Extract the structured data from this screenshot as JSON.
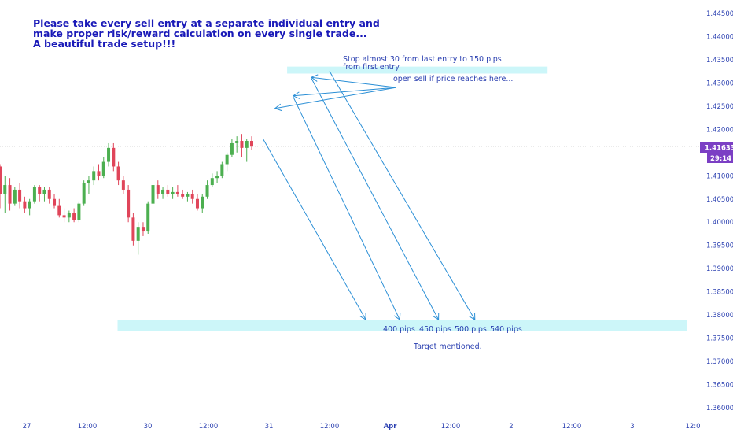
{
  "annotations": {
    "headline": [
      "Please take every sell entry at a separate individual entry and",
      "make proper risk/reward calculation on every single trade...",
      "A beautiful trade setup!!!"
    ],
    "stop_note": [
      "Stop almost 30 from last entry to 150 pips",
      "from first entry"
    ],
    "entry_note": "open sell if price reaches here...",
    "target_note": "Target mentioned.",
    "pip_labels": [
      "400 pips",
      "450 pips",
      "500 pips",
      "540 pips"
    ]
  },
  "price_badge": {
    "value": "1.41633",
    "countdown": "29:14"
  },
  "colors": {
    "up": "#4caf50",
    "down": "#e0455a",
    "zone": "#ccf6f9",
    "arrow": "#2b8fd6",
    "text": "#2a3fb0",
    "badge": "#7b3fc4"
  },
  "chart_data": {
    "type": "candlestick",
    "y_axis": {
      "range": [
        1.358,
        1.447
      ],
      "ticks": [
        "1.44500",
        "1.44000",
        "1.43500",
        "1.43000",
        "1.42500",
        "1.42000",
        "1.41500",
        "1.41000",
        "1.40500",
        "1.40000",
        "1.39500",
        "1.39000",
        "1.38500",
        "1.38000",
        "1.37500",
        "1.37000",
        "1.36500",
        "1.36000"
      ]
    },
    "x_axis": {
      "ticks": [
        {
          "label": "27",
          "t": 0.5
        },
        {
          "label": "12:00",
          "t": 1.0
        },
        {
          "label": "30",
          "t": 1.5
        },
        {
          "label": "12:00",
          "t": 2.0
        },
        {
          "label": "31",
          "t": 2.5
        },
        {
          "label": "12:00",
          "t": 3.0
        },
        {
          "label": "Apr",
          "t": 3.5,
          "bold": true
        },
        {
          "label": "12:00",
          "t": 4.0
        },
        {
          "label": "2",
          "t": 4.5
        },
        {
          "label": "12:00",
          "t": 5.0
        },
        {
          "label": "3",
          "t": 5.5
        },
        {
          "label": "12:0",
          "t": 6.0
        }
      ]
    },
    "current_price": 1.41633,
    "candles": [
      [
        1.412,
        1.4125,
        1.403,
        1.406
      ],
      [
        1.406,
        1.41,
        1.402,
        1.408
      ],
      [
        1.408,
        1.4095,
        1.4025,
        1.404
      ],
      [
        1.404,
        1.4075,
        1.4035,
        1.407
      ],
      [
        1.407,
        1.4085,
        1.403,
        1.4045
      ],
      [
        1.4045,
        1.4055,
        1.402,
        1.403
      ],
      [
        1.403,
        1.405,
        1.4015,
        1.4045
      ],
      [
        1.4045,
        1.408,
        1.404,
        1.4075
      ],
      [
        1.4075,
        1.408,
        1.4045,
        1.406
      ],
      [
        1.406,
        1.4075,
        1.4045,
        1.407
      ],
      [
        1.407,
        1.4075,
        1.404,
        1.405
      ],
      [
        1.405,
        1.406,
        1.403,
        1.4035
      ],
      [
        1.4035,
        1.405,
        1.401,
        1.4015
      ],
      [
        1.4015,
        1.403,
        1.4,
        1.401
      ],
      [
        1.401,
        1.4025,
        1.4,
        1.402
      ],
      [
        1.402,
        1.403,
        1.4,
        1.4005
      ],
      [
        1.4005,
        1.4045,
        1.4,
        1.404
      ],
      [
        1.404,
        1.409,
        1.4035,
        1.4085
      ],
      [
        1.4085,
        1.41,
        1.406,
        1.409
      ],
      [
        1.409,
        1.412,
        1.408,
        1.411
      ],
      [
        1.411,
        1.4125,
        1.409,
        1.41
      ],
      [
        1.41,
        1.414,
        1.4095,
        1.413
      ],
      [
        1.413,
        1.417,
        1.412,
        1.416
      ],
      [
        1.416,
        1.417,
        1.411,
        1.412
      ],
      [
        1.412,
        1.413,
        1.408,
        1.409
      ],
      [
        1.409,
        1.41,
        1.406,
        1.407
      ],
      [
        1.407,
        1.408,
        1.4,
        1.401
      ],
      [
        1.401,
        1.402,
        1.395,
        1.396
      ],
      [
        1.396,
        1.4,
        1.393,
        1.399
      ],
      [
        1.399,
        1.4,
        1.397,
        1.398
      ],
      [
        1.398,
        1.4045,
        1.3975,
        1.404
      ],
      [
        1.404,
        1.409,
        1.4035,
        1.408
      ],
      [
        1.408,
        1.409,
        1.405,
        1.406
      ],
      [
        1.406,
        1.4075,
        1.405,
        1.407
      ],
      [
        1.407,
        1.408,
        1.4055,
        1.406
      ],
      [
        1.406,
        1.4075,
        1.405,
        1.4065
      ],
      [
        1.4065,
        1.408,
        1.4055,
        1.406
      ],
      [
        1.406,
        1.407,
        1.405,
        1.4055
      ],
      [
        1.4055,
        1.4065,
        1.4045,
        1.406
      ],
      [
        1.406,
        1.407,
        1.404,
        1.405
      ],
      [
        1.405,
        1.406,
        1.4025,
        1.403
      ],
      [
        1.403,
        1.406,
        1.402,
        1.4055
      ],
      [
        1.4055,
        1.409,
        1.405,
        1.408
      ],
      [
        1.408,
        1.4105,
        1.4075,
        1.4095
      ],
      [
        1.4095,
        1.411,
        1.4085,
        1.41
      ],
      [
        1.41,
        1.413,
        1.4095,
        1.4125
      ],
      [
        1.4125,
        1.415,
        1.411,
        1.4145
      ],
      [
        1.4145,
        1.418,
        1.414,
        1.417
      ],
      [
        1.417,
        1.4185,
        1.415,
        1.4175
      ],
      [
        1.4175,
        1.419,
        1.414,
        1.416
      ],
      [
        1.416,
        1.418,
        1.413,
        1.4175
      ],
      [
        1.4175,
        1.4185,
        1.4155,
        1.4163
      ]
    ],
    "zones": [
      {
        "name": "stop zone",
        "price_top": 1.4335,
        "price_bottom": 1.432,
        "t_start": 2.65,
        "t_end": 4.8
      },
      {
        "name": "target zone",
        "price_top": 1.379,
        "price_bottom": 1.3765,
        "t_start": 1.25,
        "t_end": 5.95
      }
    ],
    "arrows": [
      {
        "kind": "entry",
        "from": {
          "t": 3.55,
          "price": 1.429
        },
        "to": {
          "t": 2.85,
          "price": 1.4312
        }
      },
      {
        "kind": "entry",
        "from": {
          "t": 3.55,
          "price": 1.429
        },
        "to": {
          "t": 2.7,
          "price": 1.4272
        }
      },
      {
        "kind": "entry",
        "from": {
          "t": 3.55,
          "price": 1.429
        },
        "to": {
          "t": 2.55,
          "price": 1.4245
        }
      },
      {
        "kind": "target",
        "from": {
          "t": 2.45,
          "price": 1.418
        },
        "to": {
          "t": 3.3,
          "price": 1.379
        }
      },
      {
        "kind": "target",
        "from": {
          "t": 2.7,
          "price": 1.427
        },
        "to": {
          "t": 3.58,
          "price": 1.379
        }
      },
      {
        "kind": "target",
        "from": {
          "t": 2.85,
          "price": 1.431
        },
        "to": {
          "t": 3.9,
          "price": 1.379
        }
      },
      {
        "kind": "target",
        "from": {
          "t": 3.0,
          "price": 1.4325
        },
        "to": {
          "t": 4.2,
          "price": 1.379
        }
      }
    ]
  }
}
